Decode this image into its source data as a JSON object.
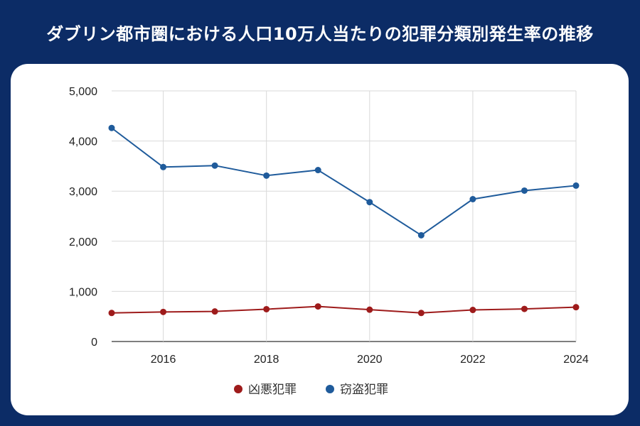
{
  "header": {
    "title": "ダブリン都市圏における人口10万人当たりの犯罪分類別発生率の推移"
  },
  "chart_data": {
    "type": "line",
    "x": [
      2015,
      2016,
      2017,
      2018,
      2019,
      2020,
      2021,
      2022,
      2023,
      2024
    ],
    "xticks": [
      2016,
      2018,
      2020,
      2022,
      2024
    ],
    "xtick_labels": [
      "2016",
      "2018",
      "2020",
      "2022",
      "2024"
    ],
    "yticks": [
      0,
      1000,
      2000,
      3000,
      4000,
      5000
    ],
    "ytick_labels": [
      "0",
      "1,000",
      "2,000",
      "3,000",
      "4,000",
      "5,000"
    ],
    "xlim": [
      2015,
      2024
    ],
    "ylim": [
      0,
      5000
    ],
    "grid": true,
    "legend_position": "bottom",
    "series": [
      {
        "name": "凶悪犯罪",
        "color": "#9e1b1b",
        "values": [
          570,
          590,
          600,
          645,
          700,
          635,
          570,
          630,
          650,
          685
        ]
      },
      {
        "name": "窃盗犯罪",
        "color": "#1f5b9b",
        "values": [
          4260,
          3480,
          3510,
          3310,
          3420,
          2780,
          2120,
          2840,
          3010,
          3110
        ]
      }
    ]
  }
}
